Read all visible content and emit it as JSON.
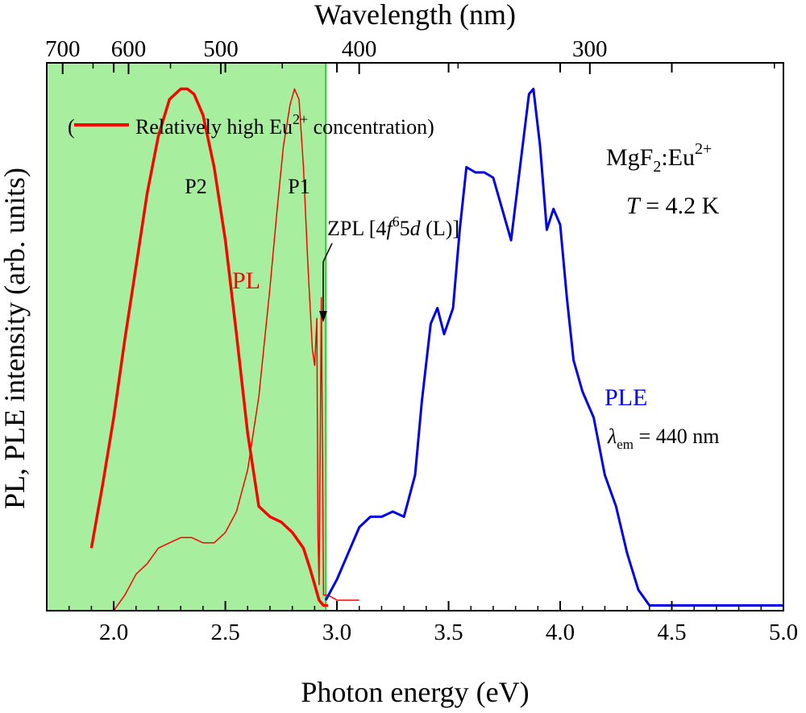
{
  "chart_data": {
    "type": "line",
    "xlabel": "Photon energy (eV)",
    "x2label": "Wavelength (nm)",
    "ylabel": "PL, PLE intensity (arb. units)",
    "xlim": [
      1.7,
      5.0
    ],
    "ylim": [
      0,
      1.05
    ],
    "x_ticks": [
      "2.0",
      "2.5",
      "3.0",
      "3.5",
      "4.0",
      "4.5",
      "5.0"
    ],
    "x2_ticks": [
      "700",
      "600",
      "500",
      "400",
      "300"
    ],
    "x2_tick_wavelengths_nm": [
      700,
      600,
      500,
      400,
      300
    ],
    "highlight": {
      "x_range": [
        1.7,
        2.95
      ],
      "color": "#a8ee9f",
      "border": "#33cc33"
    },
    "series": [
      {
        "name": "Relatively high Eu2+ concentration",
        "color": "#ff0000",
        "width": 3.5,
        "x": [
          1.9,
          1.95,
          2.0,
          2.05,
          2.1,
          2.15,
          2.2,
          2.25,
          2.3,
          2.33,
          2.36,
          2.4,
          2.45,
          2.5,
          2.55,
          2.6,
          2.65,
          2.7,
          2.75,
          2.8,
          2.85,
          2.88,
          2.9,
          2.92,
          2.94,
          2.96
        ],
        "y": [
          0.12,
          0.24,
          0.37,
          0.52,
          0.66,
          0.8,
          0.91,
          0.98,
          1.0,
          1.0,
          0.99,
          0.95,
          0.85,
          0.71,
          0.53,
          0.34,
          0.2,
          0.18,
          0.17,
          0.15,
          0.12,
          0.08,
          0.05,
          0.02,
          0.01,
          0.01
        ]
      },
      {
        "name": "PL",
        "color": "#ff0000",
        "width": 1.5,
        "x": [
          2.0,
          2.05,
          2.1,
          2.15,
          2.2,
          2.25,
          2.3,
          2.35,
          2.4,
          2.45,
          2.5,
          2.55,
          2.6,
          2.65,
          2.7,
          2.73,
          2.76,
          2.79,
          2.81,
          2.83,
          2.85,
          2.87,
          2.89,
          2.9,
          2.91,
          2.915,
          2.92,
          2.93,
          2.94,
          2.96,
          3.0,
          3.05,
          3.1
        ],
        "y": [
          0.0,
          0.03,
          0.07,
          0.09,
          0.12,
          0.13,
          0.14,
          0.14,
          0.13,
          0.13,
          0.15,
          0.19,
          0.27,
          0.41,
          0.62,
          0.76,
          0.89,
          0.97,
          1.0,
          0.98,
          0.85,
          0.66,
          0.5,
          0.47,
          0.56,
          0.14,
          0.05,
          0.6,
          0.03,
          0.03,
          0.02,
          0.02,
          0.02
        ]
      },
      {
        "name": "PLE",
        "color": "#0000e6",
        "width": 3.0,
        "x": [
          2.95,
          3.0,
          3.05,
          3.1,
          3.15,
          3.2,
          3.25,
          3.3,
          3.35,
          3.38,
          3.42,
          3.45,
          3.48,
          3.52,
          3.55,
          3.58,
          3.62,
          3.66,
          3.7,
          3.74,
          3.78,
          3.82,
          3.86,
          3.88,
          3.91,
          3.94,
          3.97,
          4.0,
          4.03,
          4.06,
          4.1,
          4.15,
          4.2,
          4.25,
          4.3,
          4.35,
          4.4,
          4.45,
          4.5,
          4.6,
          4.8,
          5.0
        ],
        "y": [
          0.02,
          0.06,
          0.11,
          0.16,
          0.18,
          0.18,
          0.19,
          0.18,
          0.26,
          0.4,
          0.55,
          0.58,
          0.53,
          0.58,
          0.73,
          0.85,
          0.84,
          0.84,
          0.83,
          0.77,
          0.71,
          0.85,
          0.99,
          1.0,
          0.89,
          0.73,
          0.77,
          0.74,
          0.6,
          0.48,
          0.42,
          0.37,
          0.26,
          0.2,
          0.11,
          0.04,
          0.01,
          0.01,
          0.01,
          0.01,
          0.01,
          0.01
        ]
      }
    ]
  },
  "legend": {
    "open_paren": "(",
    "text": "Relatively high Eu",
    "sup": "2+",
    "rest": " concentration)"
  },
  "labels": {
    "p1": "P1",
    "p2": "P2",
    "pl": "PL",
    "ple": "PLE",
    "zpl_prefix": "ZPL [4",
    "zpl_f": "f",
    "zpl_sup": "6",
    "zpl_5": "5",
    "zpl_d": "d",
    "zpl_suffix": " (L)]",
    "sample_base": "MgF",
    "sample_sub": "2",
    "sample_mid": ":Eu",
    "sample_sup": "2+",
    "temp_var": "T",
    "temp_val": " = 4.2 K",
    "lambda_sym": "λ",
    "lambda_sub": "em",
    "lambda_val": " = 440 nm"
  }
}
